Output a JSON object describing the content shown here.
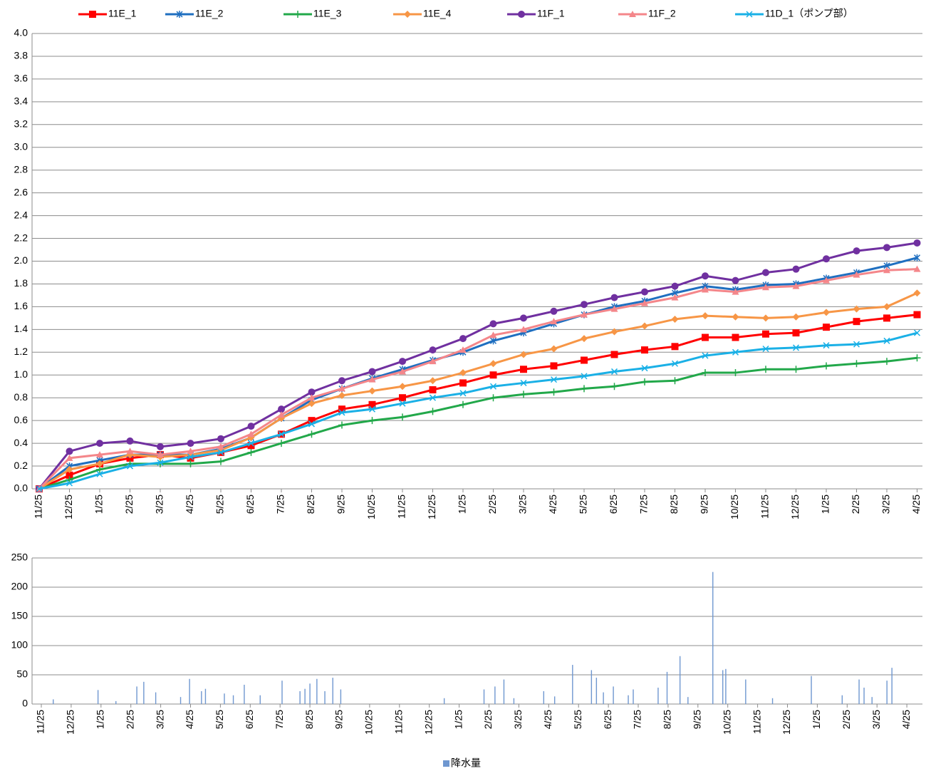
{
  "chart_data": [
    {
      "type": "line",
      "categories": [
        "11/25",
        "12/25",
        "1/25",
        "2/25",
        "3/25",
        "4/25",
        "5/25",
        "6/25",
        "7/25",
        "8/25",
        "9/25",
        "10/25",
        "11/25",
        "12/25",
        "1/25",
        "2/25",
        "3/25",
        "4/25",
        "5/25",
        "6/25",
        "7/25",
        "8/25",
        "9/25",
        "10/25",
        "11/25",
        "12/25",
        "1/25",
        "2/25",
        "3/25",
        "4/25"
      ],
      "ylim": [
        0,
        4
      ],
      "yticks": [
        {
          "value": 0,
          "label": "0.0"
        },
        0.2,
        0.4,
        0.6,
        0.8,
        {
          "value": 1,
          "label": "1.0"
        },
        1.2,
        1.4,
        1.6,
        1.8,
        {
          "value": 2,
          "label": "2.0"
        },
        2.2,
        2.4,
        2.6,
        2.8,
        {
          "value": 3,
          "label": "3.0"
        },
        3.2,
        3.4,
        3.6,
        3.8,
        {
          "value": 4,
          "label": "4.0"
        }
      ],
      "grid": true,
      "legend": "top",
      "series": [
        {
          "name": "11E_1",
          "color": "#ff0000",
          "marker": "square",
          "values": [
            0,
            0.12,
            0.22,
            0.27,
            0.3,
            0.27,
            0.32,
            0.38,
            0.48,
            0.6,
            0.7,
            0.74,
            0.8,
            0.87,
            0.93,
            1.0,
            1.05,
            1.08,
            1.13,
            1.18,
            1.22,
            1.25,
            1.33,
            1.33,
            1.36,
            1.37,
            1.42,
            1.47,
            1.5,
            1.53
          ]
        },
        {
          "name": "11E_2",
          "color": "#1f6fc0",
          "marker": "star",
          "values": [
            0,
            0.2,
            0.25,
            0.3,
            0.3,
            0.3,
            0.35,
            0.45,
            0.62,
            0.78,
            0.88,
            0.97,
            1.05,
            1.13,
            1.2,
            1.3,
            1.37,
            1.45,
            1.53,
            1.6,
            1.65,
            1.72,
            1.78,
            1.75,
            1.79,
            1.8,
            1.85,
            1.9,
            1.96,
            2.03
          ]
        },
        {
          "name": "11E_3",
          "color": "#22a84a",
          "marker": "plus",
          "values": [
            0,
            0.08,
            0.17,
            0.22,
            0.22,
            0.22,
            0.24,
            0.32,
            0.4,
            0.48,
            0.56,
            0.6,
            0.63,
            0.68,
            0.74,
            0.8,
            0.83,
            0.85,
            0.88,
            0.9,
            0.94,
            0.95,
            1.02,
            1.02,
            1.05,
            1.05,
            1.08,
            1.1,
            1.12,
            1.15
          ]
        },
        {
          "name": "11E_4",
          "color": "#f79646",
          "marker": "diamond",
          "values": [
            0,
            0.17,
            0.22,
            0.3,
            0.28,
            0.3,
            0.34,
            0.45,
            0.62,
            0.75,
            0.82,
            0.86,
            0.9,
            0.95,
            1.02,
            1.1,
            1.18,
            1.23,
            1.32,
            1.38,
            1.43,
            1.49,
            1.52,
            1.51,
            1.5,
            1.51,
            1.55,
            1.58,
            1.6,
            1.72
          ]
        },
        {
          "name": "11F_1",
          "color": "#7030a0",
          "marker": "circle",
          "values": [
            0,
            0.33,
            0.4,
            0.42,
            0.37,
            0.4,
            0.44,
            0.55,
            0.7,
            0.85,
            0.95,
            1.03,
            1.12,
            1.22,
            1.32,
            1.45,
            1.5,
            1.56,
            1.62,
            1.68,
            1.73,
            1.78,
            1.87,
            1.83,
            1.9,
            1.93,
            2.02,
            2.09,
            2.12,
            2.16
          ]
        },
        {
          "name": "11F_2",
          "color": "#f4868a",
          "marker": "triangle",
          "values": [
            0,
            0.27,
            0.3,
            0.33,
            0.3,
            0.33,
            0.37,
            0.48,
            0.65,
            0.8,
            0.88,
            0.96,
            1.03,
            1.12,
            1.22,
            1.35,
            1.4,
            1.47,
            1.53,
            1.58,
            1.63,
            1.68,
            1.75,
            1.73,
            1.77,
            1.78,
            1.83,
            1.88,
            1.92,
            1.93
          ]
        },
        {
          "name": "11D_1（ポンプ部）",
          "color": "#1ab0e6",
          "marker": "x",
          "values": [
            0,
            0.05,
            0.13,
            0.2,
            0.23,
            0.28,
            0.32,
            0.4,
            0.48,
            0.57,
            0.67,
            0.7,
            0.75,
            0.8,
            0.84,
            0.9,
            0.93,
            0.96,
            0.99,
            1.03,
            1.06,
            1.1,
            1.17,
            1.2,
            1.23,
            1.24,
            1.26,
            1.27,
            1.3,
            1.37
          ]
        }
      ]
    },
    {
      "type": "bar",
      "categories": [
        "11/25",
        "12/25",
        "1/25",
        "2/25",
        "3/25",
        "4/25",
        "5/25",
        "6/25",
        "7/25",
        "8/25",
        "9/25",
        "10/25",
        "11/25",
        "12/25",
        "1/25",
        "2/25",
        "3/25",
        "4/25",
        "5/25",
        "6/25",
        "7/25",
        "8/25",
        "9/25",
        "10/25",
        "11/25",
        "12/25",
        "1/25",
        "2/25",
        "3/25",
        "4/25"
      ],
      "ylim": [
        0,
        250
      ],
      "yticks": [
        0,
        50,
        100,
        150,
        200,
        250
      ],
      "grid": true,
      "legend": "bottom",
      "series": [
        {
          "name": "降水量",
          "color": "#6f97d0",
          "x": [
            "12/7",
            "1/22",
            "2/10",
            "3/1",
            "3/8",
            "3/20",
            "4/15",
            "4/24",
            "5/6",
            "5/10",
            "5/29",
            "6/8",
            "6/19",
            "7/5",
            "7/27",
            "8/15",
            "8/20",
            "8/25",
            "9/2",
            "9/10",
            "9/18",
            "9/26",
            "1/10",
            "2/20",
            "3/1",
            "3/10",
            "3/20",
            "4/20",
            "5/1",
            "5/19",
            "6/8",
            "6/13",
            "6/20",
            "6/30",
            "7/15",
            "7/20",
            "8/15",
            "8/24",
            "9/7",
            "9/15",
            "10/10",
            "10/20",
            "10/23",
            "11/13",
            "12/10",
            "1/19",
            "2/20",
            "3/7",
            "3/12",
            "3/20",
            "4/5",
            "4/10"
          ],
          "values": [
            8,
            24,
            5,
            30,
            38,
            20,
            12,
            43,
            22,
            26,
            18,
            15,
            33,
            15,
            40,
            22,
            26,
            35,
            43,
            22,
            45,
            25,
            10,
            25,
            30,
            42,
            10,
            22,
            13,
            67,
            58,
            45,
            20,
            30,
            15,
            25,
            28,
            55,
            82,
            12,
            226,
            58,
            60,
            42,
            10,
            48,
            15,
            42,
            28,
            12,
            40,
            62
          ]
        }
      ]
    }
  ]
}
